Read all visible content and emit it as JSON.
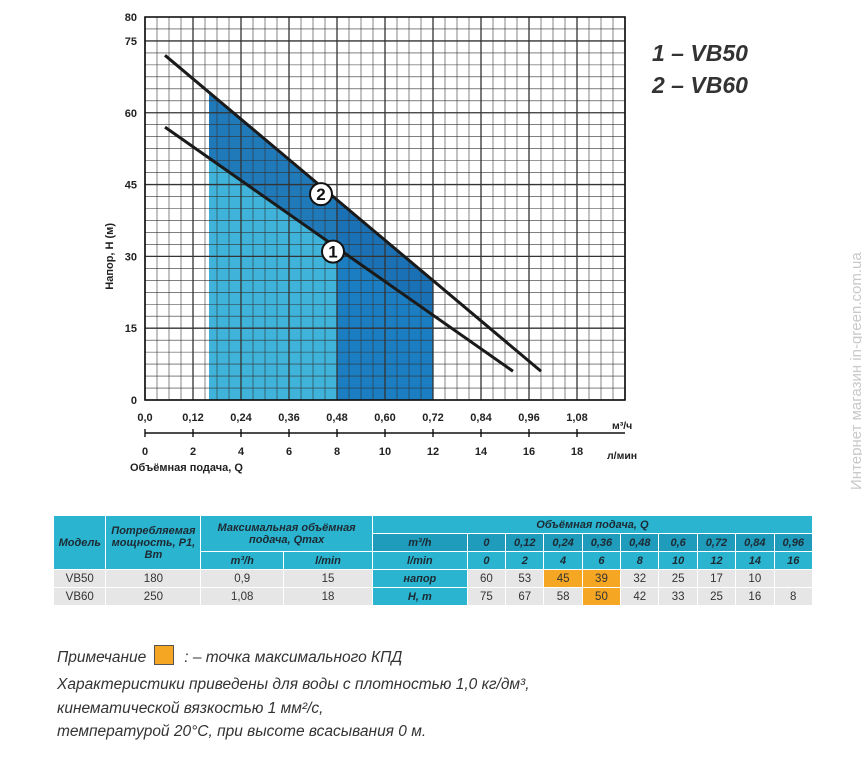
{
  "chart_data": {
    "type": "line",
    "ylabel": "Напор, H (м)",
    "xlabel": "Объёмная подача, Q",
    "x_unit_top": "м³/ч",
    "x_unit_bottom": "л/мин",
    "ylim": [
      0,
      80
    ],
    "xlim": [
      0,
      1.2
    ],
    "yticks": [
      "0",
      "15",
      "30",
      "45",
      "60",
      "75",
      "80"
    ],
    "ytick_values": [
      0,
      15,
      30,
      45,
      60,
      75,
      80
    ],
    "xticks_m3h": [
      "0,0",
      "0,12",
      "0,24",
      "0,36",
      "0,48",
      "0,60",
      "0,72",
      "0,84",
      "0,96",
      "1,08"
    ],
    "xtick_values_m3h": [
      0,
      0.12,
      0.24,
      0.36,
      0.48,
      0.6,
      0.72,
      0.84,
      0.96,
      1.08
    ],
    "xticks_lmin": [
      "0",
      "2",
      "4",
      "6",
      "8",
      "10",
      "12",
      "14",
      "16",
      "18"
    ],
    "grid": true,
    "series": [
      {
        "name": "1 – VB50",
        "label": "1",
        "color": "#1a1a1a",
        "x": [
          0.05,
          0.92
        ],
        "y": [
          57,
          6
        ]
      },
      {
        "name": "2 – VB60",
        "label": "2",
        "color": "#1a1a1a",
        "x": [
          0.05,
          0.99
        ],
        "y": [
          72,
          6
        ]
      }
    ],
    "shaded_regions": [
      {
        "x": [
          0.16,
          0.48
        ],
        "color": "#3fb3d9"
      },
      {
        "x": [
          0.48,
          0.72
        ],
        "color": "#1b7ec2"
      }
    ],
    "curve_labels": [
      {
        "text": "1",
        "x": 0.47,
        "y": 31
      },
      {
        "text": "2",
        "x": 0.44,
        "y": 43
      }
    ]
  },
  "legend": {
    "item1": "1 – VB50",
    "item2": "2 – VB60"
  },
  "table": {
    "col_model": "Модель",
    "col_power": "Потребляемая мощность, P1, Вт",
    "col_qmax": "Максимальная объёмная подача, Qmax",
    "col_flow": "Объёмная подача, Q",
    "unit_m3h": "m³/h",
    "unit_lmin": "l/min",
    "flow_m3h": [
      "0",
      "0,12",
      "0,24",
      "0,36",
      "0,48",
      "0,6",
      "0,72",
      "0,84",
      "0,96"
    ],
    "flow_lmin": [
      "0",
      "2",
      "4",
      "6",
      "8",
      "10",
      "12",
      "14",
      "16"
    ],
    "head_label_1": "напор",
    "head_label_2": "H, m",
    "rows": [
      {
        "model": "VB50",
        "power": "180",
        "qmax_m3h": "0,9",
        "qmax_lmin": "15",
        "head": [
          "60",
          "53",
          "45",
          "39",
          "32",
          "25",
          "17",
          "10",
          ""
        ]
      },
      {
        "model": "VB60",
        "power": "250",
        "qmax_m3h": "1,08",
        "qmax_lmin": "18",
        "head": [
          "75",
          "67",
          "58",
          "50",
          "42",
          "33",
          "25",
          "16",
          "8"
        ]
      }
    ],
    "highlight_color": "#f5a623"
  },
  "notes": {
    "note_prefix": "Примечание",
    "note_suffix": ": – точка максимального КПД",
    "desc1": "Характеристики приведены для воды с плотностью 1,0 кг/дм³,",
    "desc2": "кинематической вязкостью 1 мм²/с,",
    "desc3": "температурой 20°С, при высоте всасывания 0 м."
  },
  "watermark": "Интернет магазин  in-green.com.ua"
}
